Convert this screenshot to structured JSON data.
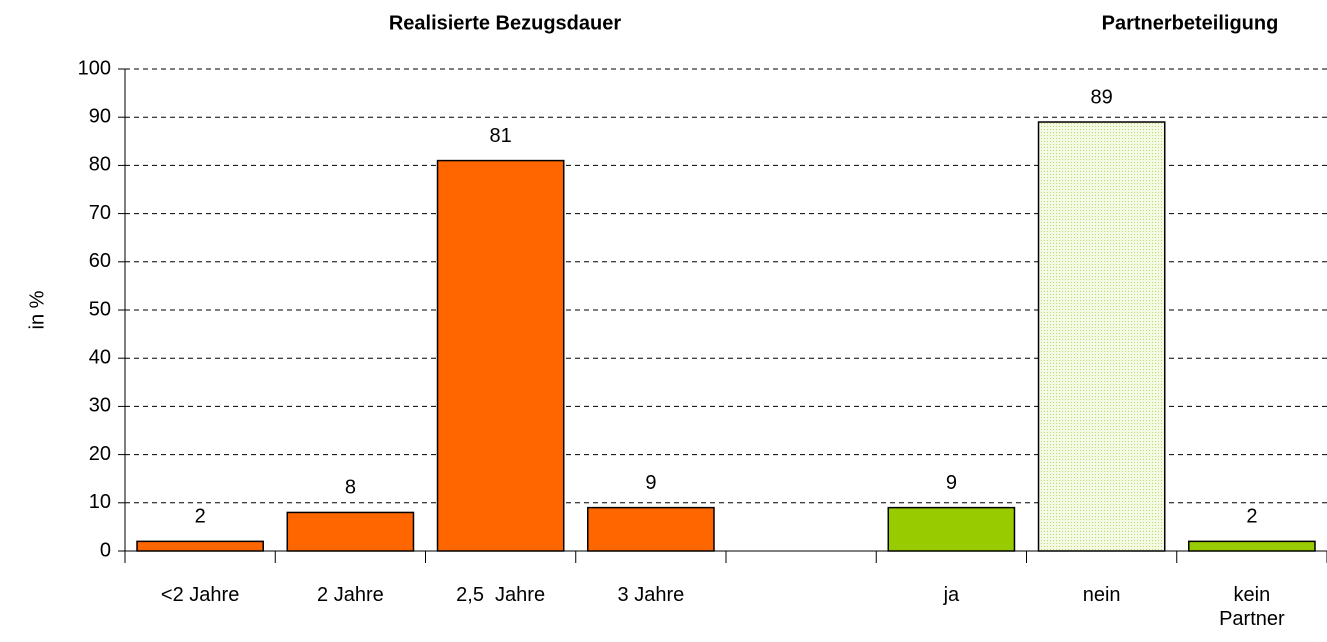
{
  "chart_data": {
    "type": "bar",
    "titles": [
      {
        "text": "Realisierte Bezugsdauer",
        "color": "#ff6600"
      },
      {
        "text": "Partnerbeteiligung",
        "color": "#99cc00"
      }
    ],
    "y_label": "in %",
    "categories": [
      "<2 Jahre",
      "2 Jahre",
      "2,5  Jahre",
      "3 Jahre",
      null,
      "ja",
      "nein",
      "kein Partner"
    ],
    "values": [
      2,
      8,
      81,
      9,
      null,
      9,
      89,
      2
    ],
    "colors": [
      "#ff6600",
      "#ff6600",
      "#ff6600",
      "#ff6600",
      null,
      "#99cc00",
      "#eef7d6",
      "#99cc00"
    ],
    "ylim": [
      0,
      100
    ],
    "yticks": [
      0,
      10,
      20,
      30,
      40,
      50,
      60,
      70,
      80,
      90,
      100
    ],
    "grid": true
  }
}
